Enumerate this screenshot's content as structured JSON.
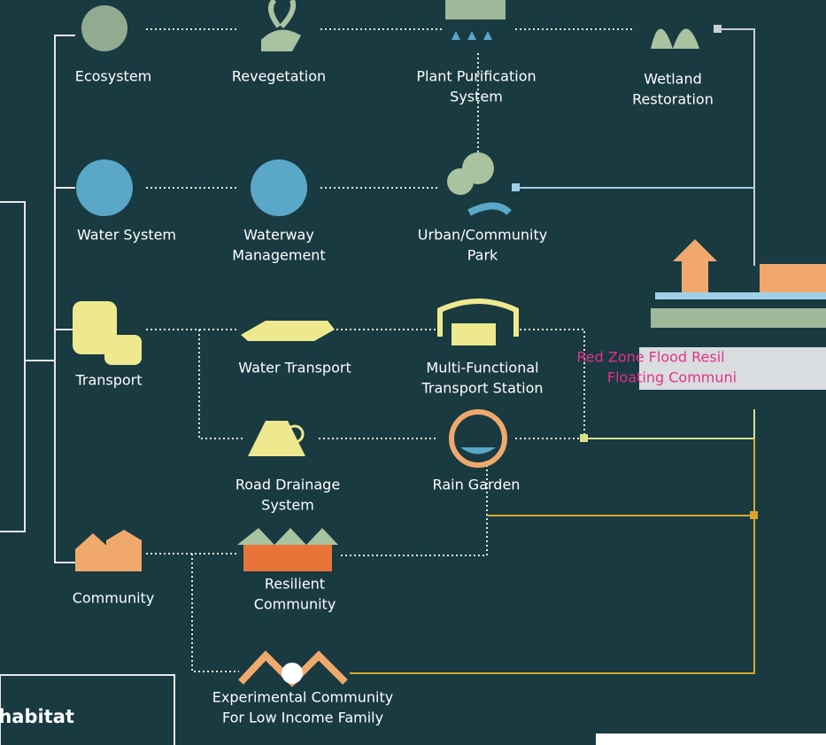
{
  "nodes": [
    {
      "label": [
        "Ecosystem"
      ]
    },
    {
      "label": [
        "Revegetation"
      ]
    },
    {
      "label": [
        "Plant Purification",
        "System"
      ]
    },
    {
      "label": [
        "Wetland",
        "Restoration"
      ]
    },
    {
      "label": [
        "Water System"
      ]
    },
    {
      "label": [
        "Waterway",
        "Management"
      ]
    },
    {
      "label": [
        "Urban/Community",
        "Park"
      ]
    },
    {
      "label": [
        "Transport"
      ]
    },
    {
      "label": [
        "Water Transport"
      ]
    },
    {
      "label": [
        "Multi-Functional",
        "Transport Station"
      ]
    },
    {
      "label": [
        "Road Drainage",
        "System"
      ]
    },
    {
      "label": [
        "Rain Garden"
      ]
    },
    {
      "label": [
        "Community"
      ]
    },
    {
      "label": [
        "Resilient",
        "Community"
      ]
    },
    {
      "label": [
        "Experimental Community",
        "For Low Income Family"
      ]
    }
  ],
  "target": {
    "label": [
      "Red Zone Flood Resil",
      "Floating Communi"
    ]
  },
  "note": {
    "text": "rovide habitat"
  }
}
